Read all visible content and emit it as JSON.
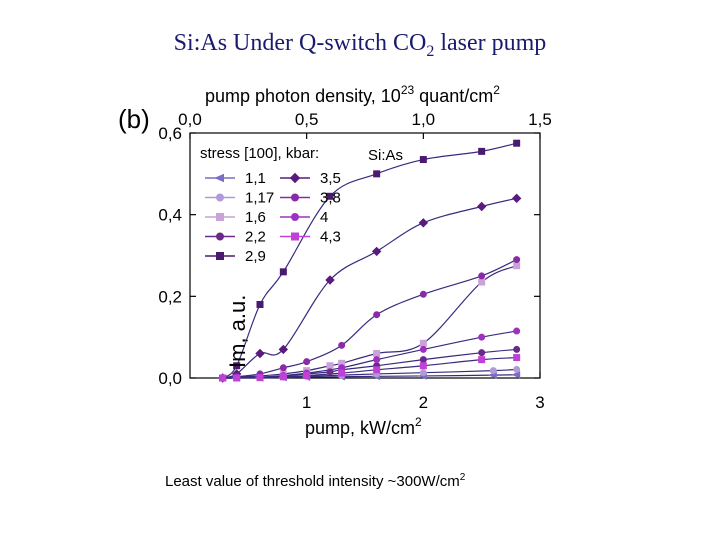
{
  "slide": {
    "title_main": "Si:As Under Q-switch CO",
    "title_sub": "2",
    "title_end": " laser pump",
    "caption_main": "Least value of threshold intensity ~300W/cm",
    "caption_sup": "2"
  },
  "chart_data": {
    "type": "line",
    "panel_label": "(b)",
    "sample_label": "Si:As",
    "xlabel": "pump, kW/cm",
    "xlabel_sup": "2",
    "x2label": "pump photon density, 10",
    "x2label_sup": "23",
    "x2label_unit": " quant/cm",
    "x2label_unit_sup": "2",
    "ylabel": "Im, a.u.",
    "xlim": [
      0,
      3
    ],
    "ylim": [
      0,
      0.6
    ],
    "x2lim": [
      0,
      1.5
    ],
    "xticks": [
      1,
      2,
      3
    ],
    "xtick_labels": [
      "1",
      "2",
      "3"
    ],
    "yticks": [
      0,
      0.2,
      0.4,
      0.6
    ],
    "ytick_labels": [
      "0,0",
      "0,2",
      "0,4",
      "0,6"
    ],
    "x2ticks": [
      0,
      0.5,
      1.0,
      1.5
    ],
    "x2tick_labels": [
      "0,0",
      "0,5",
      "1,0",
      "1,5"
    ],
    "legend_title": "stress [100], kbar:",
    "legend_placement": "top-left",
    "series": [
      {
        "name": "1,1",
        "color": "#7b6cc4",
        "marker": "triangle-left",
        "x": [
          0.28,
          0.4,
          0.6,
          0.8,
          1.0,
          1.3,
          1.6,
          2.0,
          2.6,
          2.8
        ],
        "y": [
          0.0,
          0.0,
          0.0,
          0.001,
          0.002,
          0.003,
          0.004,
          0.005,
          0.007,
          0.008
        ]
      },
      {
        "name": "1,17",
        "color": "#b09ad8",
        "marker": "circle",
        "x": [
          0.28,
          0.4,
          0.6,
          0.8,
          1.0,
          1.3,
          1.6,
          2.0,
          2.6,
          2.8
        ],
        "y": [
          0.0,
          0.0,
          0.001,
          0.002,
          0.004,
          0.007,
          0.01,
          0.013,
          0.018,
          0.021
        ]
      },
      {
        "name": "1,6",
        "color": "#c8a2d8",
        "marker": "square",
        "x": [
          0.28,
          0.4,
          0.6,
          0.8,
          1.0,
          1.2,
          1.3,
          1.6,
          2.0,
          2.5,
          2.8
        ],
        "y": [
          0.0,
          0.002,
          0.005,
          0.01,
          0.018,
          0.03,
          0.036,
          0.06,
          0.085,
          0.235,
          0.275
        ]
      },
      {
        "name": "2,2",
        "color": "#6a2a8a",
        "marker": "circle",
        "x": [
          0.28,
          0.4,
          0.6,
          0.8,
          1.0,
          1.2,
          1.3,
          1.6,
          2.0,
          2.5,
          2.8
        ],
        "y": [
          0.0,
          0.0,
          0.002,
          0.005,
          0.01,
          0.015,
          0.02,
          0.03,
          0.045,
          0.062,
          0.07
        ]
      },
      {
        "name": "2,9",
        "color": "#4a1a6e",
        "marker": "square",
        "x": [
          0.28,
          0.4,
          0.6,
          0.8,
          1.2,
          1.6,
          2.0,
          2.5,
          2.8
        ],
        "y": [
          0.0,
          0.03,
          0.18,
          0.26,
          0.445,
          0.5,
          0.535,
          0.555,
          0.575
        ]
      },
      {
        "name": "3,5",
        "color": "#5a1a7e",
        "marker": "diamond",
        "x": [
          0.28,
          0.4,
          0.6,
          0.8,
          1.2,
          1.6,
          2.0,
          2.5,
          2.8
        ],
        "y": [
          0.0,
          0.01,
          0.06,
          0.07,
          0.24,
          0.31,
          0.38,
          0.42,
          0.44
        ]
      },
      {
        "name": "3,8",
        "color": "#8a2aa8",
        "marker": "circle",
        "x": [
          0.28,
          0.4,
          0.6,
          0.8,
          1.0,
          1.3,
          1.6,
          2.0,
          2.5,
          2.8
        ],
        "y": [
          0.0,
          0.003,
          0.01,
          0.025,
          0.04,
          0.08,
          0.155,
          0.205,
          0.25,
          0.29
        ]
      },
      {
        "name": "4",
        "color": "#a030c0",
        "marker": "circle",
        "x": [
          0.28,
          0.4,
          0.6,
          0.8,
          1.0,
          1.3,
          1.6,
          2.0,
          2.5,
          2.8
        ],
        "y": [
          0.0,
          0.0,
          0.002,
          0.006,
          0.012,
          0.025,
          0.045,
          0.07,
          0.1,
          0.115
        ]
      },
      {
        "name": "4,3",
        "color": "#c040d8",
        "marker": "square",
        "x": [
          0.28,
          0.4,
          0.6,
          0.8,
          1.0,
          1.3,
          1.6,
          2.0,
          2.5,
          2.8
        ],
        "y": [
          0.0,
          0.0,
          0.001,
          0.003,
          0.006,
          0.012,
          0.02,
          0.03,
          0.045,
          0.05
        ]
      }
    ]
  }
}
